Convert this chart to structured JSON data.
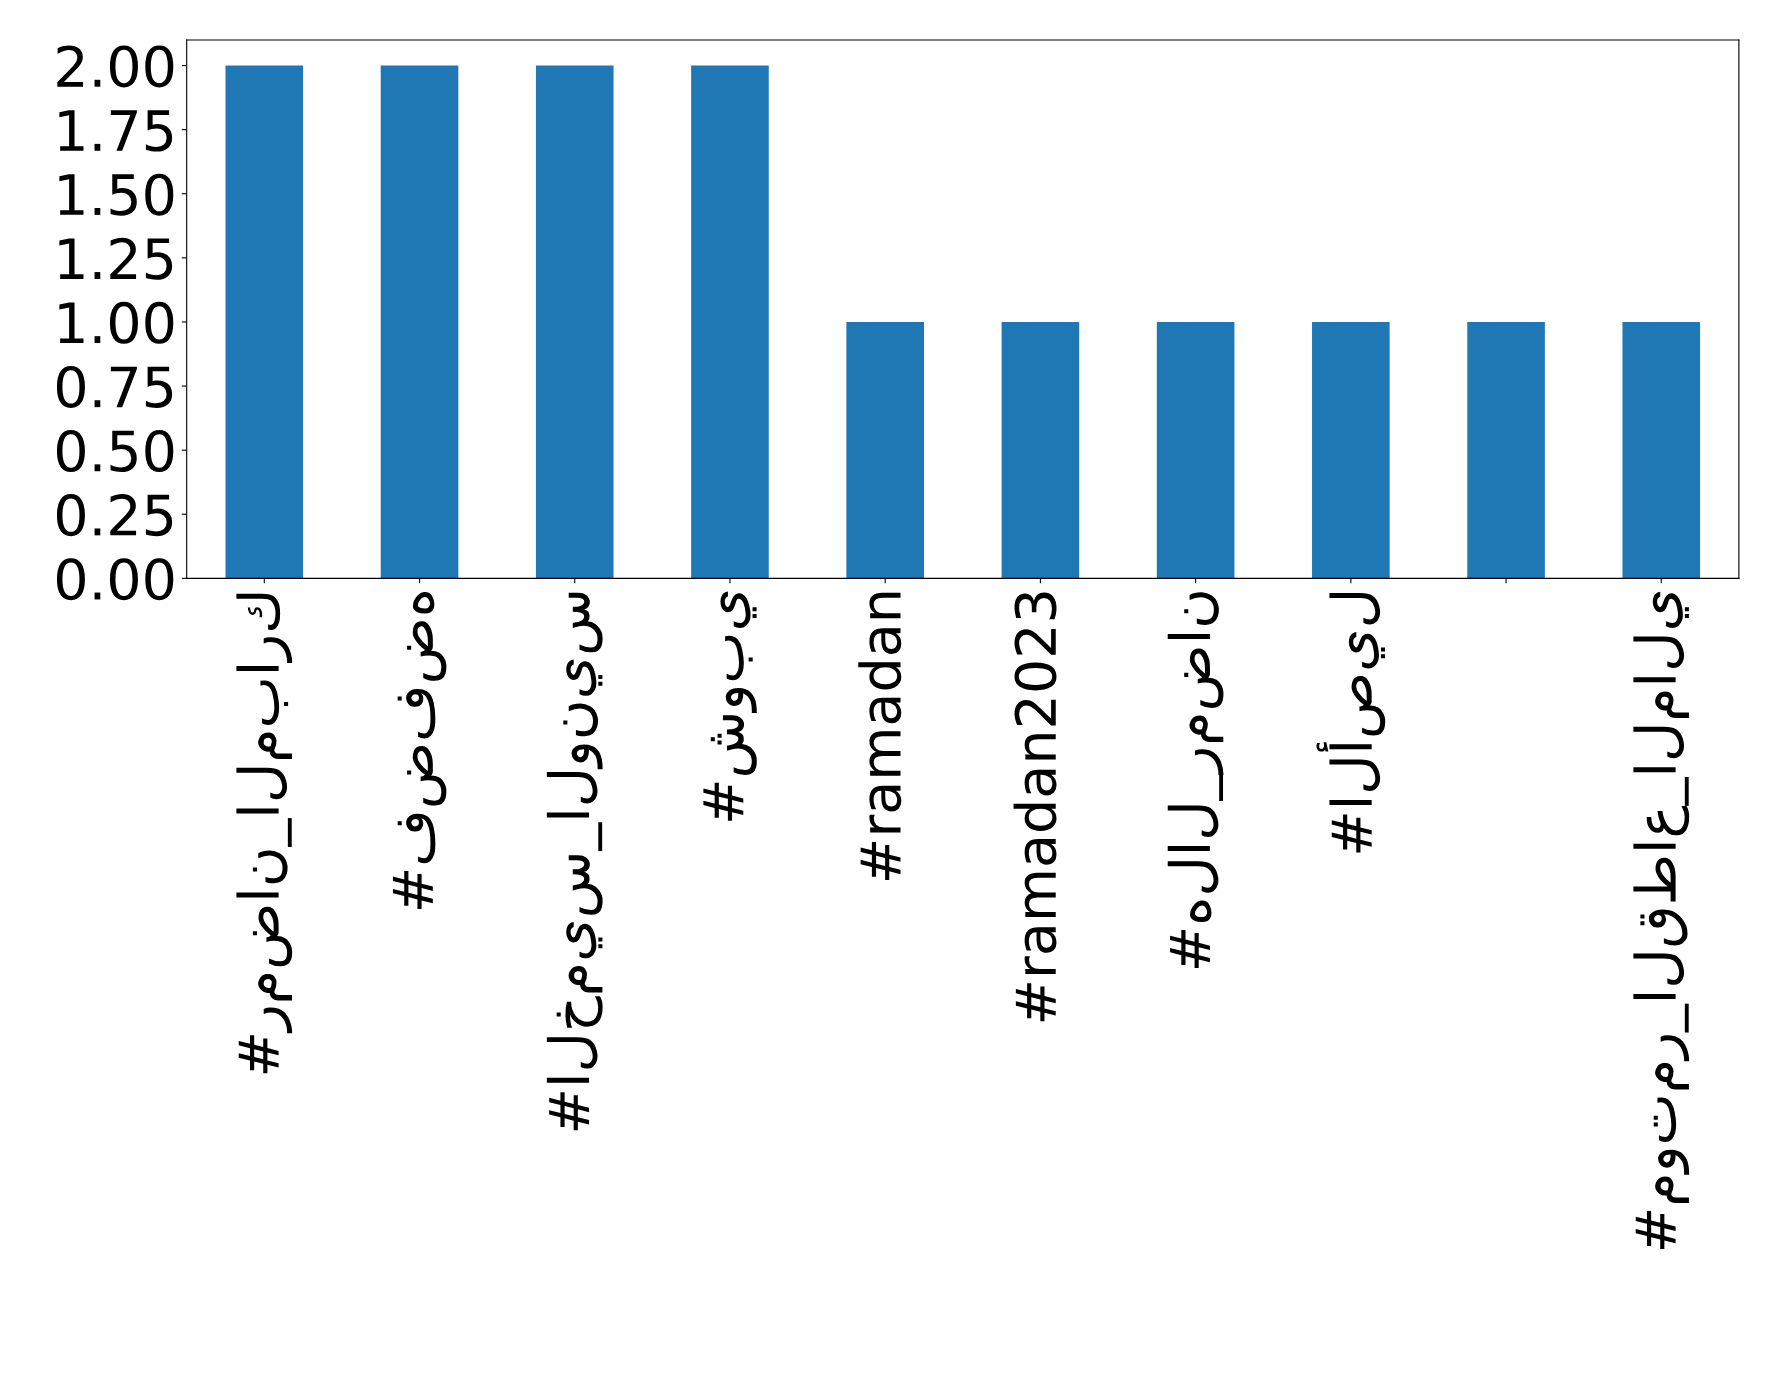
{
  "chart_data": {
    "type": "bar",
    "categories": [
      "#رمضان_المبارك",
      "#فضفضه",
      "#الخميس_الونيس",
      "#شوبي",
      "#ramadan",
      "#ramadan2023",
      "#هلال_رمضان",
      "#الأصيل",
      null,
      "#موتمر_القطاع_المالي"
    ],
    "values": [
      2,
      2,
      2,
      2,
      1,
      1,
      1,
      1,
      1,
      1
    ],
    "color": "#1f77b4",
    "ylim": [
      0,
      2.1
    ],
    "yticks": [
      {
        "value": 0,
        "label": "0.00"
      },
      {
        "value": 0.25,
        "label": "0.25"
      },
      {
        "value": 0.5,
        "label": "0.50"
      },
      {
        "value": 0.75,
        "label": "0.75"
      },
      {
        "value": 1,
        "label": "1.00"
      },
      {
        "value": 1.25,
        "label": "1.25"
      },
      {
        "value": 1.5,
        "label": "1.50"
      },
      {
        "value": 1.75,
        "label": "1.75"
      },
      {
        "value": 2,
        "label": "2.00"
      }
    ],
    "grid": false,
    "legend": false
  }
}
